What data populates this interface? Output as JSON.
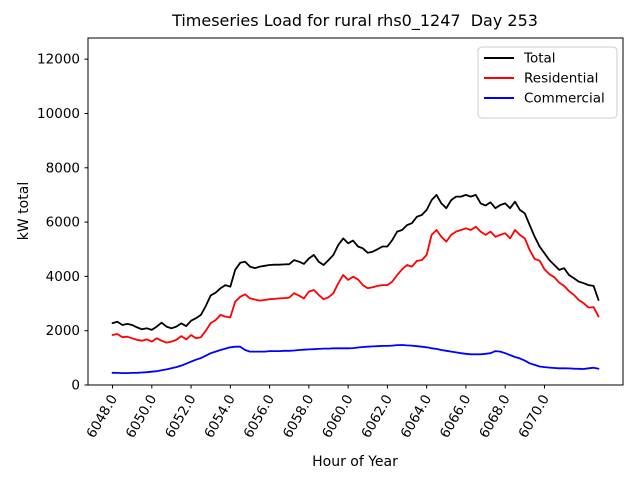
{
  "figure": {
    "title": "Timeseries Load for rural rhs0_1247  Day 253",
    "xlabel": "Hour of Year",
    "ylabel": "kW total"
  },
  "colors": {
    "background": "#ffffff",
    "axes": "#000000",
    "legend_border": "#cccccc",
    "total": "#000000",
    "residential": "#ff0000",
    "commercial": "#0000ff"
  },
  "chart_data": {
    "type": "line",
    "title": "Timeseries Load for rural rhs0_1247  Day 253",
    "xlabel": "Hour of Year",
    "ylabel": "kW total",
    "grid": false,
    "legend_position": "upper right",
    "xlim": [
      6046.75,
      6074.0
    ],
    "ylim": [
      0,
      12780
    ],
    "xtick_values": [
      6048,
      6050,
      6052,
      6054,
      6056,
      6058,
      6060,
      6062,
      6064,
      6066,
      6068,
      6070
    ],
    "xtick_labels": [
      "6048.0",
      "6050.0",
      "6052.0",
      "6054.0",
      "6056.0",
      "6058.0",
      "6060.0",
      "6062.0",
      "6064.0",
      "6066.0",
      "6068.0",
      "6070.0"
    ],
    "xtick_rotation": 60,
    "ytick_values": [
      0,
      2000,
      4000,
      6000,
      8000,
      10000,
      12000
    ],
    "ytick_labels": [
      "0",
      "2000",
      "4000",
      "6000",
      "8000",
      "10000",
      "12000"
    ],
    "x_start": 6048.0,
    "x_step": 0.25,
    "series": [
      {
        "name": "Total",
        "color": "#000000",
        "values": [
          2280,
          2330,
          2210,
          2250,
          2210,
          2120,
          2050,
          2090,
          2030,
          2150,
          2295,
          2150,
          2090,
          2150,
          2270,
          2170,
          2370,
          2460,
          2580,
          2910,
          3300,
          3400,
          3560,
          3680,
          3620,
          4240,
          4500,
          4540,
          4360,
          4300,
          4360,
          4390,
          4420,
          4430,
          4430,
          4440,
          4450,
          4600,
          4540,
          4460,
          4660,
          4790,
          4540,
          4420,
          4600,
          4790,
          5160,
          5400,
          5220,
          5320,
          5100,
          5030,
          4870,
          4910,
          5000,
          5100,
          5100,
          5340,
          5650,
          5710,
          5890,
          5960,
          6200,
          6260,
          6450,
          6810,
          7000,
          6690,
          6510,
          6810,
          6940,
          6940,
          7000,
          6940,
          7000,
          6690,
          6610,
          6730,
          6510,
          6630,
          6690,
          6510,
          6750,
          6450,
          6320,
          5890,
          5460,
          5100,
          4850,
          4600,
          4420,
          4240,
          4300,
          4050,
          3930,
          3810,
          3750,
          3680,
          3650,
          3130
        ]
      },
      {
        "name": "Residential",
        "color": "#ff0000",
        "values": [
          1840,
          1880,
          1760,
          1780,
          1720,
          1660,
          1630,
          1680,
          1600,
          1720,
          1630,
          1560,
          1600,
          1660,
          1800,
          1680,
          1840,
          1720,
          1760,
          2000,
          2280,
          2390,
          2580,
          2520,
          2490,
          3070,
          3250,
          3340,
          3190,
          3150,
          3110,
          3130,
          3160,
          3170,
          3190,
          3200,
          3220,
          3380,
          3290,
          3190,
          3440,
          3500,
          3320,
          3160,
          3230,
          3380,
          3750,
          4050,
          3870,
          3990,
          3890,
          3680,
          3560,
          3600,
          3650,
          3680,
          3680,
          3810,
          4050,
          4260,
          4420,
          4360,
          4570,
          4600,
          4790,
          5530,
          5710,
          5460,
          5280,
          5530,
          5650,
          5710,
          5770,
          5710,
          5830,
          5650,
          5530,
          5650,
          5460,
          5530,
          5590,
          5400,
          5710,
          5530,
          5400,
          4970,
          4640,
          4580,
          4260,
          4080,
          3970,
          3770,
          3650,
          3460,
          3320,
          3130,
          3010,
          2850,
          2870,
          2520
        ]
      },
      {
        "name": "Commercial",
        "color": "#0000ff",
        "values": [
          450,
          445,
          440,
          440,
          445,
          450,
          460,
          470,
          490,
          510,
          540,
          575,
          615,
          660,
          715,
          785,
          860,
          930,
          990,
          1080,
          1170,
          1230,
          1290,
          1340,
          1390,
          1410,
          1410,
          1290,
          1230,
          1230,
          1230,
          1230,
          1250,
          1250,
          1250,
          1260,
          1260,
          1270,
          1290,
          1300,
          1310,
          1320,
          1330,
          1340,
          1340,
          1350,
          1350,
          1350,
          1350,
          1360,
          1380,
          1400,
          1410,
          1420,
          1430,
          1440,
          1440,
          1450,
          1470,
          1475,
          1460,
          1450,
          1430,
          1410,
          1390,
          1350,
          1330,
          1290,
          1260,
          1230,
          1200,
          1170,
          1150,
          1130,
          1130,
          1130,
          1150,
          1170,
          1250,
          1230,
          1170,
          1100,
          1030,
          980,
          900,
          800,
          740,
          680,
          660,
          640,
          625,
          615,
          615,
          610,
          600,
          595,
          590,
          615,
          638,
          600
        ]
      }
    ]
  }
}
